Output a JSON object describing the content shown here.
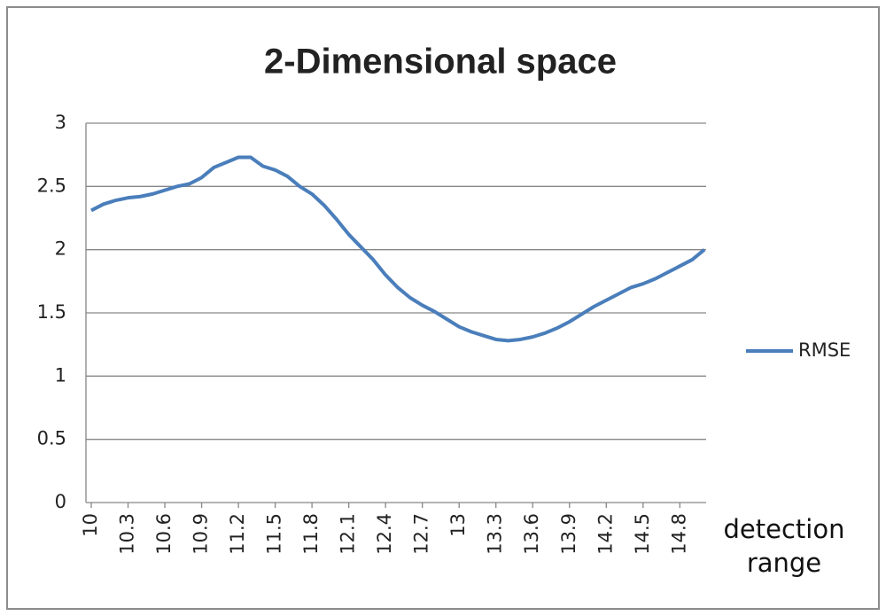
{
  "chart_data": {
    "type": "line",
    "title": "2-Dimensional space",
    "x_label": "detection range",
    "categories": [
      "10",
      null,
      null,
      "10.3",
      null,
      null,
      "10.6",
      null,
      null,
      "10.9",
      null,
      null,
      "11.2",
      null,
      null,
      "11.5",
      null,
      null,
      "11.8",
      null,
      null,
      "12.1",
      null,
      null,
      "12.4",
      null,
      null,
      "12.7",
      null,
      null,
      "13",
      null,
      null,
      "13.3",
      null,
      null,
      "13.6",
      null,
      null,
      "13.9",
      null,
      null,
      "14.2",
      null,
      null,
      "14.5",
      null,
      null,
      "14.8",
      null,
      null
    ],
    "series": [
      {
        "name": "RMSE",
        "color": "#4a7ebb",
        "values": [
          2.31,
          2.36,
          2.39,
          2.41,
          2.42,
          2.44,
          2.47,
          2.5,
          2.52,
          2.57,
          2.65,
          2.69,
          2.73,
          2.73,
          2.66,
          2.63,
          2.58,
          2.5,
          2.44,
          2.35,
          2.24,
          2.12,
          2.02,
          1.92,
          1.8,
          1.7,
          1.62,
          1.56,
          1.51,
          1.45,
          1.39,
          1.35,
          1.32,
          1.29,
          1.28,
          1.29,
          1.31,
          1.34,
          1.38,
          1.43,
          1.49,
          1.55,
          1.6,
          1.65,
          1.7,
          1.73,
          1.77,
          1.82,
          1.87,
          1.92,
          2.0
        ]
      }
    ],
    "ylim": [
      0,
      3
    ],
    "yticks": [
      0,
      0.5,
      1,
      1.5,
      2,
      2.5,
      3
    ],
    "grid": true,
    "legend": "right"
  }
}
